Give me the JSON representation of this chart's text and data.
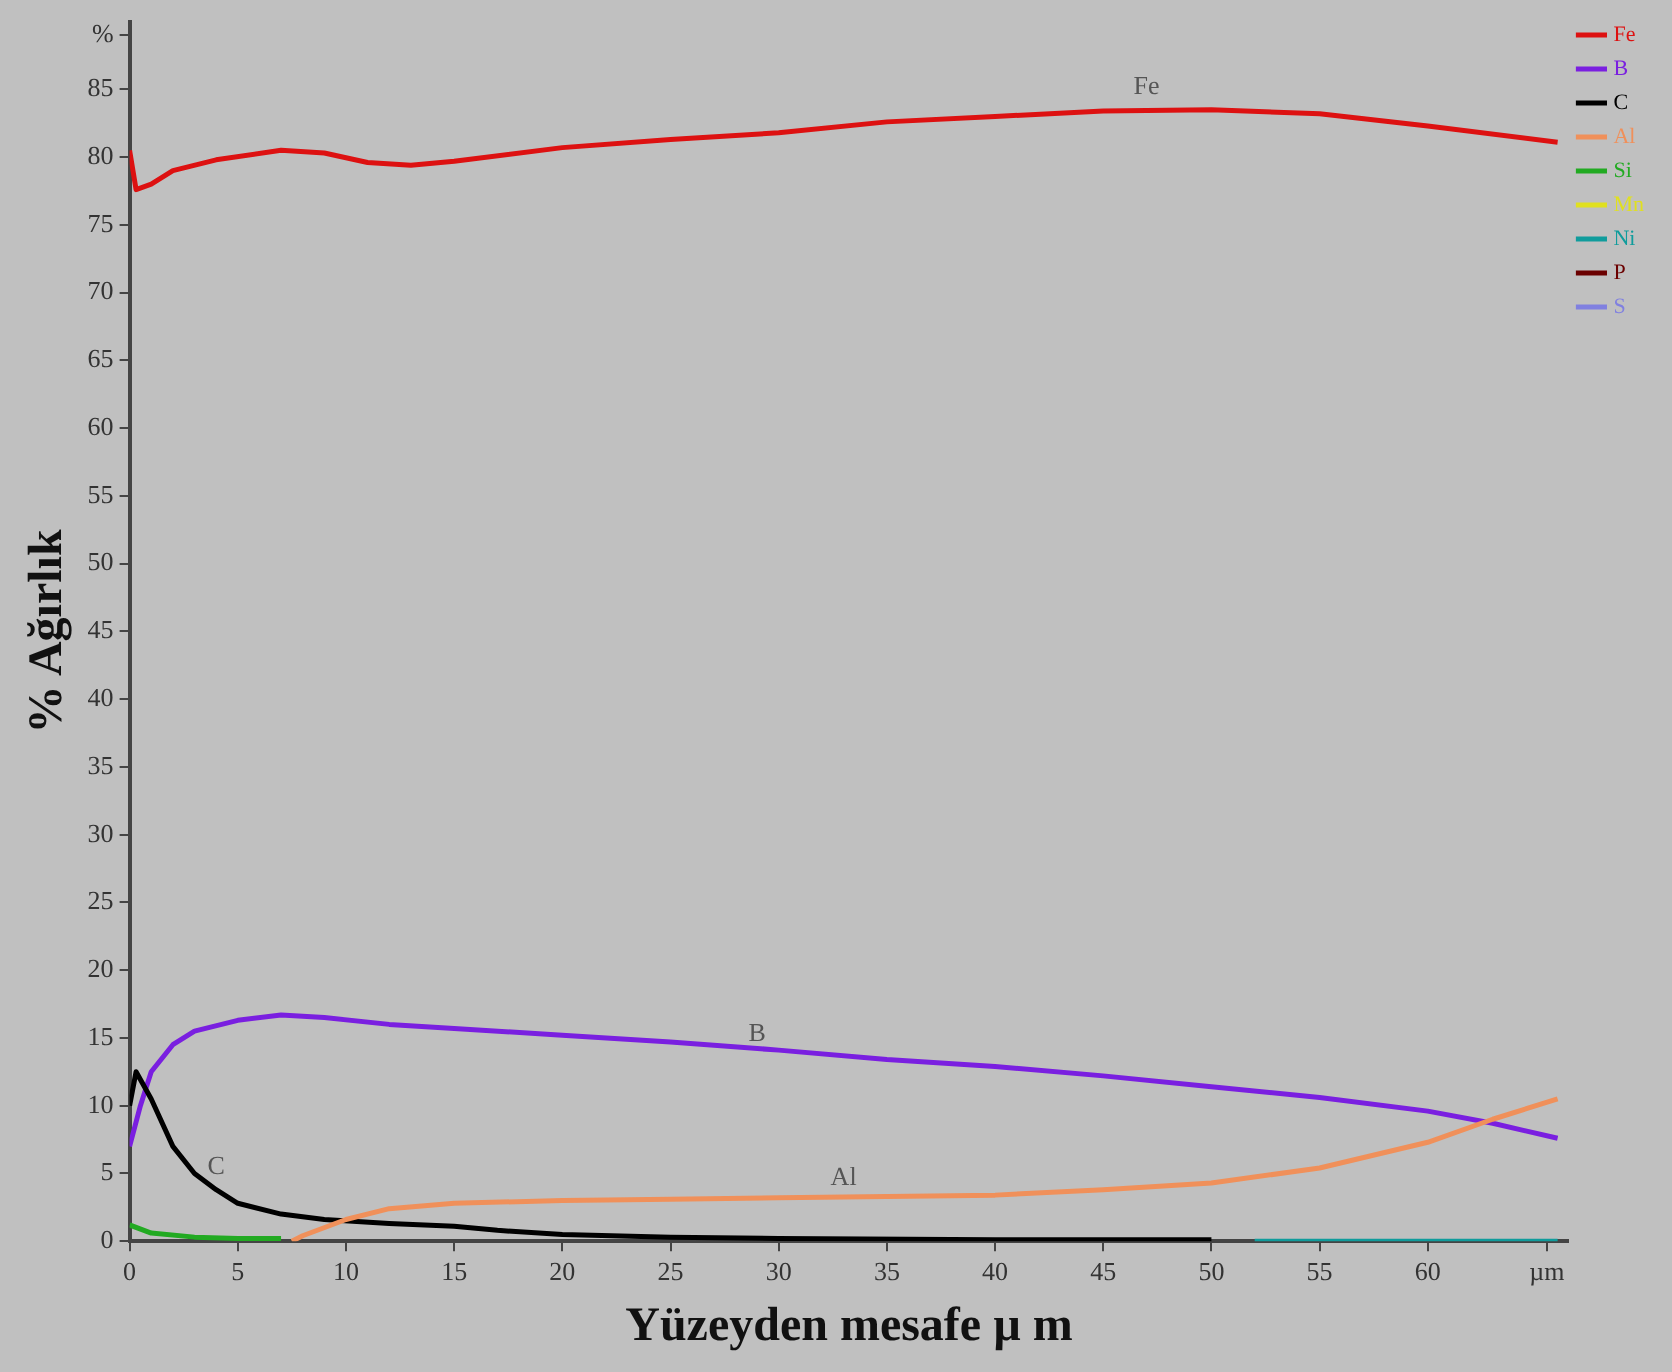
{
  "chart_data": {
    "type": "line",
    "xlabel": "Yüzeyden mesafe µ m",
    "ylabel": "% Ağırlık",
    "xlim": [
      0,
      66.5
    ],
    "xticks": [
      0,
      5,
      10,
      15,
      20,
      25,
      30,
      35,
      40,
      45,
      50,
      55,
      60,
      {
        "value": 65.5,
        "label": "µm"
      }
    ],
    "ylim": [
      0,
      90
    ],
    "yticks": [
      0,
      5,
      10,
      15,
      20,
      25,
      30,
      35,
      40,
      45,
      50,
      55,
      60,
      65,
      70,
      75,
      80,
      85,
      {
        "value": 89,
        "label": "%"
      }
    ],
    "grid": false,
    "legend": "top right",
    "marker": "none",
    "line_style": "solid",
    "annotations": [
      {
        "text": "Fe",
        "x": 47,
        "y": 84.2
      },
      {
        "text": "B",
        "x": 29,
        "y": 14.3
      },
      {
        "text": "C",
        "x": 4,
        "y": 4.5
      },
      {
        "text": "Al",
        "x": 33,
        "y": 3.7
      }
    ],
    "series": [
      {
        "name": "Fe",
        "color": "#dd1111",
        "x": [
          0,
          0.3,
          1,
          2,
          4,
          7,
          9,
          11,
          13,
          15,
          20,
          25,
          30,
          35,
          40,
          45,
          50,
          55,
          60,
          66
        ],
        "values": [
          80.5,
          77.6,
          78,
          79,
          79.8,
          80.5,
          80.3,
          79.6,
          79.4,
          79.7,
          80.7,
          81.3,
          81.8,
          82.6,
          83,
          83.4,
          83.5,
          83.2,
          82.3,
          81.1
        ]
      },
      {
        "name": "B",
        "color": "#7a1fe0",
        "x": [
          0,
          0.5,
          1,
          2,
          3,
          5,
          7,
          9,
          12,
          15,
          20,
          25,
          30,
          35,
          40,
          45,
          50,
          55,
          60,
          63,
          66
        ],
        "values": [
          7,
          10,
          12.5,
          14.5,
          15.5,
          16.3,
          16.7,
          16.5,
          16,
          15.7,
          15.2,
          14.7,
          14.1,
          13.4,
          12.9,
          12.2,
          11.4,
          10.6,
          9.6,
          8.7,
          7.6
        ]
      },
      {
        "name": "C",
        "color": "#000000",
        "x": [
          0,
          0.3,
          1,
          2,
          3,
          4,
          5,
          7,
          9,
          12,
          15,
          17,
          20,
          25,
          30,
          40,
          50
        ],
        "values": [
          10,
          12.5,
          10.5,
          7,
          5,
          3.8,
          2.8,
          2,
          1.6,
          1.3,
          1.1,
          0.8,
          0.5,
          0.3,
          0.2,
          0.1,
          0.1
        ]
      },
      {
        "name": "Al",
        "color": "#f0905a",
        "x": [
          7.5,
          8,
          10,
          12,
          15,
          20,
          25,
          30,
          35,
          40,
          45,
          50,
          55,
          60,
          63,
          66
        ],
        "values": [
          0,
          0.4,
          1.6,
          2.4,
          2.8,
          3,
          3.1,
          3.2,
          3.3,
          3.4,
          3.8,
          4.3,
          5.4,
          7.3,
          9,
          10.5
        ]
      },
      {
        "name": "Si",
        "color": "#22aa22",
        "x": [
          0,
          1,
          3,
          5,
          7
        ],
        "values": [
          1.2,
          0.6,
          0.3,
          0.2,
          0.2
        ]
      },
      {
        "name": "Mn",
        "color": "#e0e020"
      },
      {
        "name": "Ni",
        "color": "#109c9c",
        "x": [
          52,
          66
        ],
        "values": [
          0,
          0
        ]
      },
      {
        "name": "P",
        "color": "#6b0000"
      },
      {
        "name": "S",
        "color": "#8080e0"
      }
    ]
  }
}
